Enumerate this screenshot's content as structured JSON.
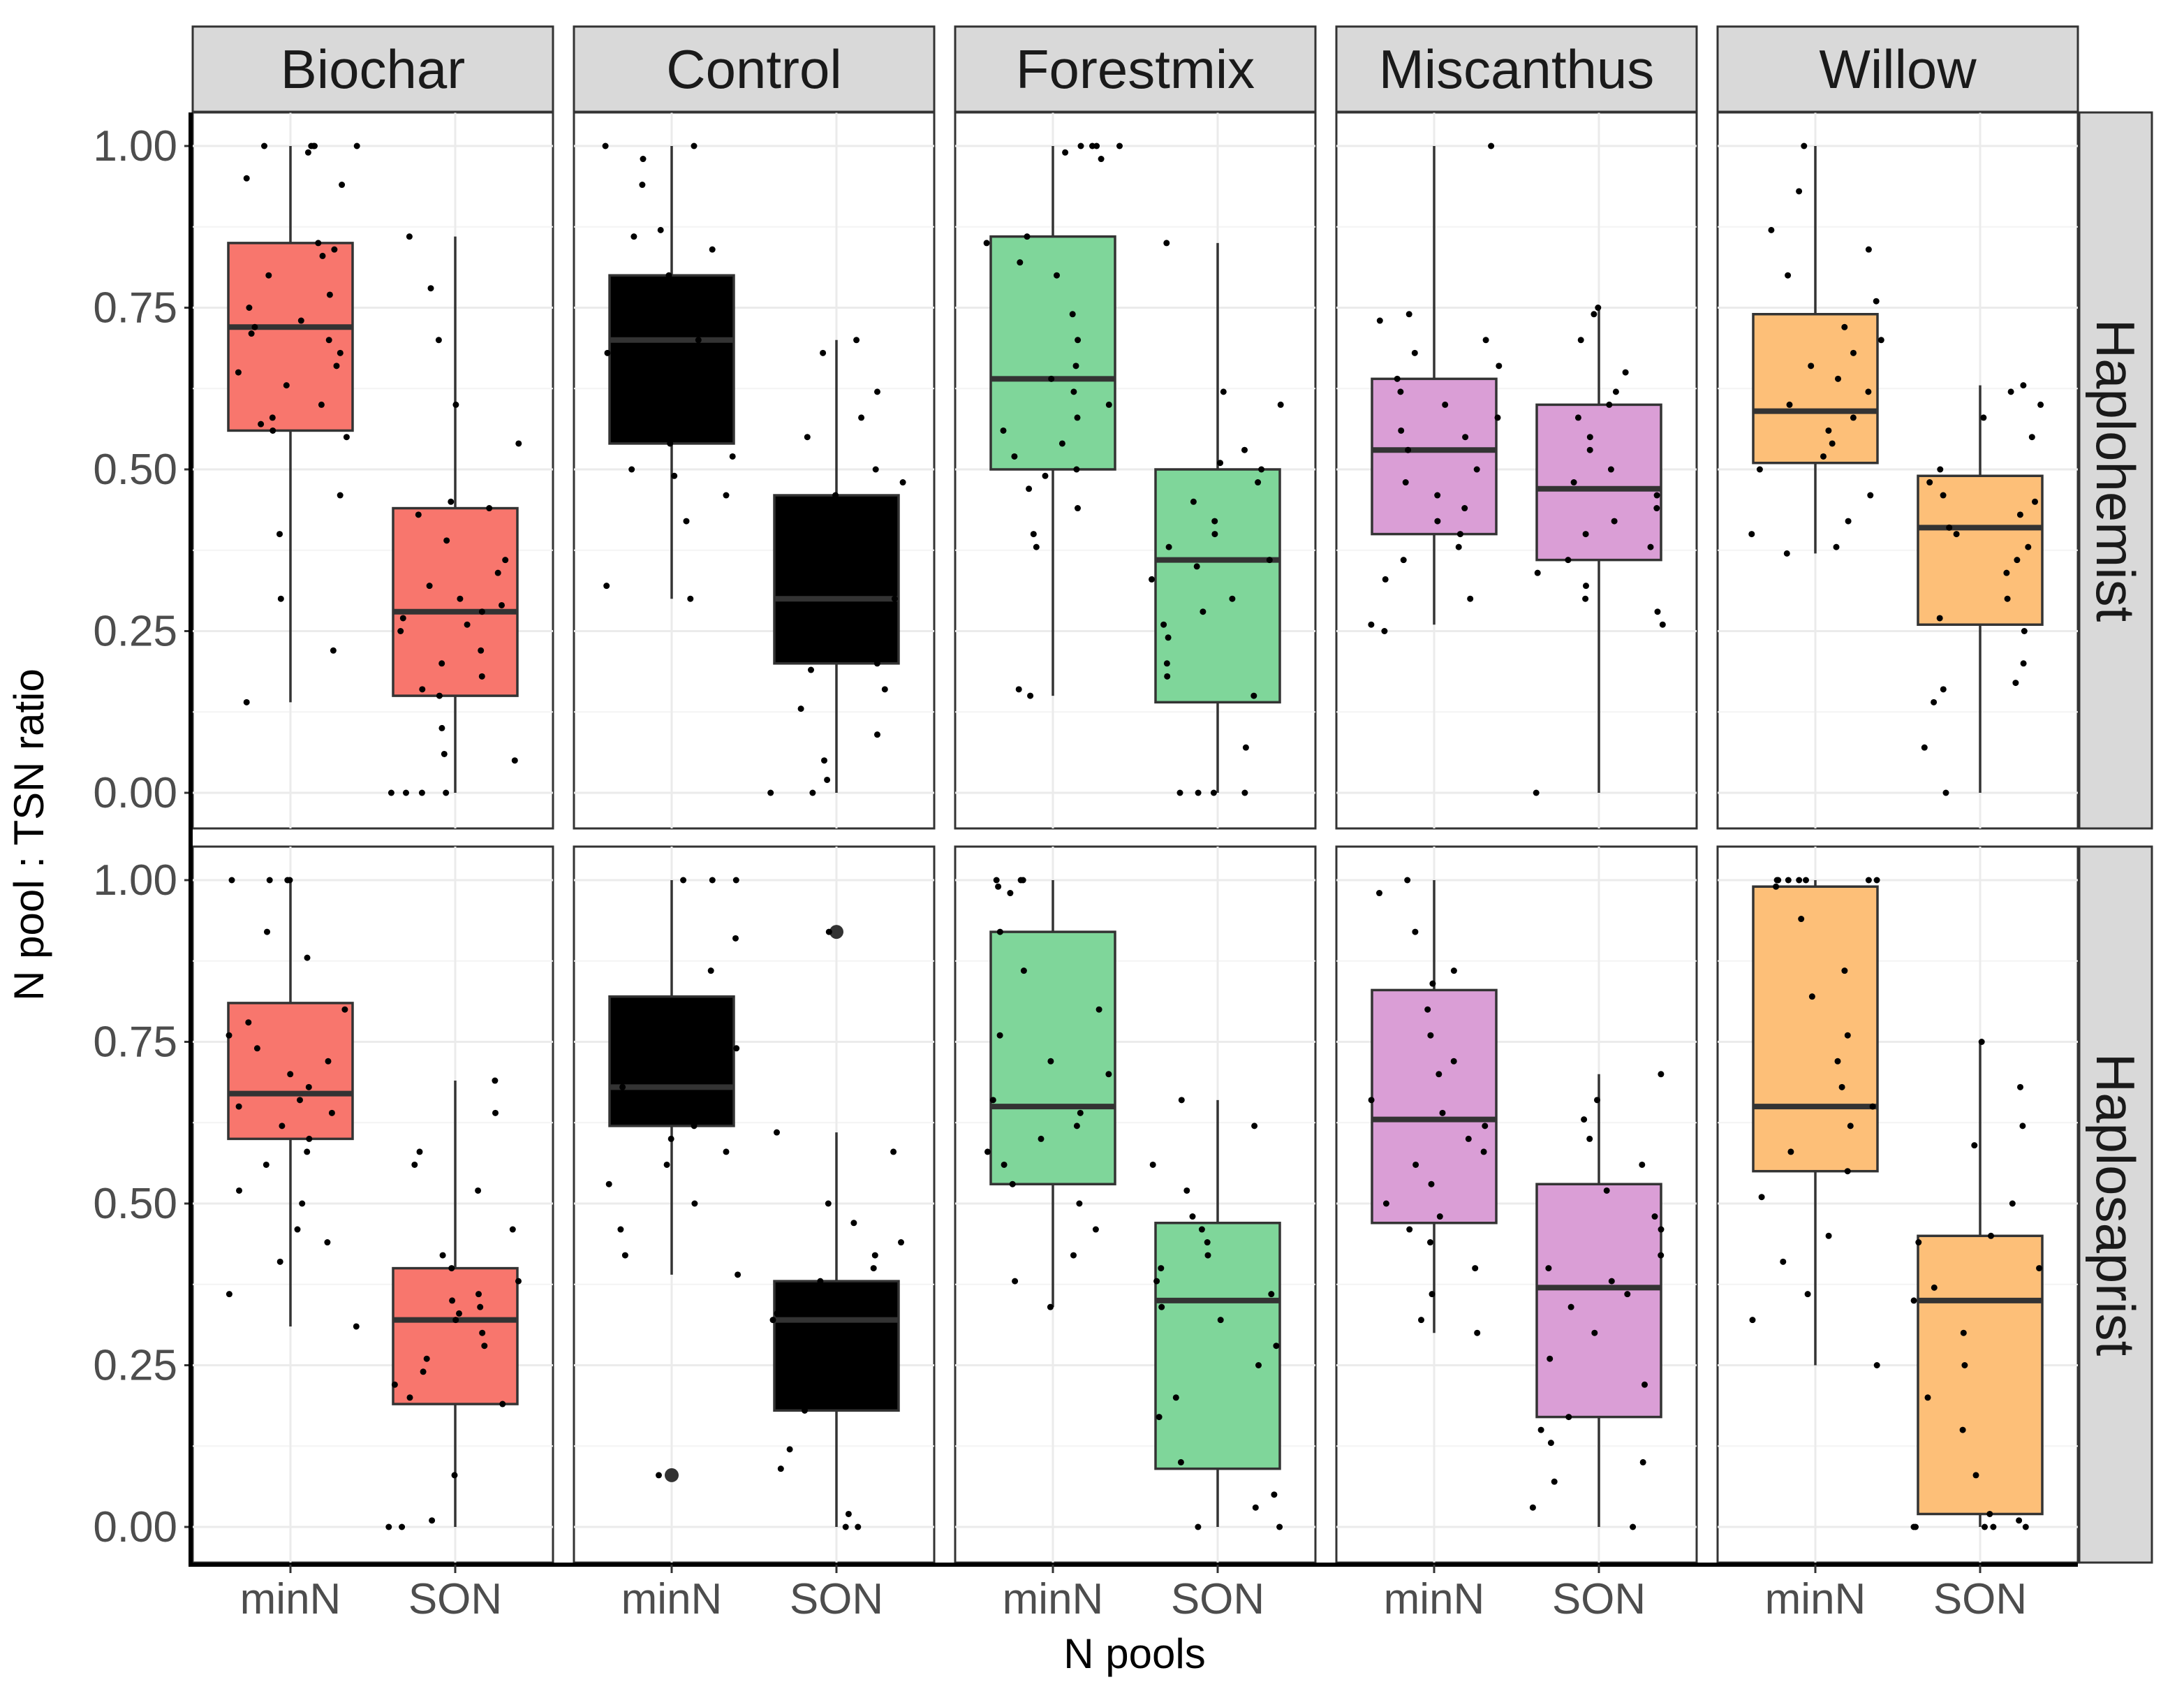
{
  "chart_data": {
    "type": "boxplot",
    "ylabel": "N pool : TSN ratio",
    "xlabel": "N pools",
    "categories": [
      "minN",
      "SON"
    ],
    "yticks": [
      "0.00",
      "0.25",
      "0.50",
      "0.75",
      "1.00"
    ],
    "ylim": [
      0,
      1
    ],
    "columns": [
      "Biochar",
      "Control",
      "Forestmix",
      "Miscanthus",
      "Willow"
    ],
    "rows": [
      "Haplohemist",
      "Haplosaprist"
    ],
    "colors": {
      "Biochar": "#f8766d",
      "Control": "#000000",
      "Forestmix": "#7fd69a",
      "Miscanthus": "#da9ed6",
      "Willow": "#fdbf78"
    },
    "panels": [
      {
        "row": "Haplohemist",
        "column": "Biochar",
        "boxes": [
          {
            "pool": "minN",
            "lower_whisker": 0.14,
            "q1": 0.56,
            "median": 0.72,
            "q3": 0.85,
            "upper_whisker": 1.0,
            "points": [
              1.0,
              1.0,
              0.99,
              1.0,
              1.0,
              1.0,
              0.95,
              0.94,
              0.85,
              0.84,
              0.83,
              0.8,
              0.77,
              0.75,
              0.73,
              0.72,
              0.71,
              0.7,
              0.68,
              0.66,
              0.65,
              0.63,
              0.6,
              0.58,
              0.57,
              0.56,
              0.55,
              0.46,
              0.4,
              0.3,
              0.22,
              0.14
            ]
          },
          {
            "pool": "SON",
            "lower_whisker": 0.0,
            "q1": 0.15,
            "median": 0.28,
            "q3": 0.44,
            "upper_whisker": 0.86,
            "points": [
              0.86,
              0.78,
              0.7,
              0.6,
              0.54,
              0.45,
              0.44,
              0.43,
              0.39,
              0.36,
              0.34,
              0.32,
              0.3,
              0.29,
              0.28,
              0.27,
              0.26,
              0.25,
              0.22,
              0.2,
              0.18,
              0.16,
              0.15,
              0.1,
              0.06,
              0.05,
              0.0,
              0.0,
              0.0,
              0.0
            ]
          }
        ]
      },
      {
        "row": "Haplohemist",
        "column": "Control",
        "boxes": [
          {
            "pool": "minN",
            "lower_whisker": 0.3,
            "q1": 0.54,
            "median": 0.7,
            "q3": 0.8,
            "upper_whisker": 1.0,
            "points": [
              1.0,
              1.0,
              0.98,
              0.94,
              0.87,
              0.86,
              0.84,
              0.8,
              0.78,
              0.74,
              0.72,
              0.7,
              0.68,
              0.66,
              0.64,
              0.6,
              0.58,
              0.55,
              0.54,
              0.52,
              0.5,
              0.49,
              0.46,
              0.42,
              0.32,
              0.3
            ]
          },
          {
            "pool": "SON",
            "lower_whisker": 0.0,
            "q1": 0.2,
            "median": 0.3,
            "q3": 0.46,
            "upper_whisker": 0.7,
            "points": [
              0.7,
              0.68,
              0.62,
              0.58,
              0.55,
              0.5,
              0.48,
              0.46,
              0.45,
              0.42,
              0.4,
              0.38,
              0.35,
              0.34,
              0.32,
              0.3,
              0.28,
              0.26,
              0.24,
              0.2,
              0.19,
              0.16,
              0.13,
              0.09,
              0.05,
              0.02,
              0.0,
              0.0
            ]
          }
        ]
      },
      {
        "row": "Haplohemist",
        "column": "Forestmix",
        "boxes": [
          {
            "pool": "minN",
            "lower_whisker": 0.15,
            "q1": 0.5,
            "median": 0.64,
            "q3": 0.86,
            "upper_whisker": 1.0,
            "points": [
              1.0,
              1.0,
              1.0,
              1.0,
              0.99,
              0.98,
              0.86,
              0.85,
              0.82,
              0.8,
              0.74,
              0.7,
              0.66,
              0.64,
              0.62,
              0.6,
              0.58,
              0.56,
              0.54,
              0.52,
              0.5,
              0.49,
              0.47,
              0.44,
              0.4,
              0.38,
              0.16,
              0.15
            ]
          },
          {
            "pool": "SON",
            "lower_whisker": 0.0,
            "q1": 0.14,
            "median": 0.36,
            "q3": 0.5,
            "upper_whisker": 0.85,
            "points": [
              0.85,
              0.62,
              0.6,
              0.53,
              0.51,
              0.5,
              0.48,
              0.45,
              0.42,
              0.4,
              0.38,
              0.36,
              0.35,
              0.33,
              0.3,
              0.28,
              0.26,
              0.24,
              0.2,
              0.18,
              0.15,
              0.07,
              0.0,
              0.0,
              0.0,
              0.0
            ]
          }
        ]
      },
      {
        "row": "Haplohemist",
        "column": "Miscanthus",
        "boxes": [
          {
            "pool": "minN",
            "lower_whisker": 0.26,
            "q1": 0.4,
            "median": 0.53,
            "q3": 0.64,
            "upper_whisker": 1.0,
            "points": [
              1.0,
              0.74,
              0.73,
              0.7,
              0.68,
              0.66,
              0.64,
              0.62,
              0.6,
              0.58,
              0.56,
              0.55,
              0.53,
              0.5,
              0.48,
              0.46,
              0.44,
              0.42,
              0.4,
              0.38,
              0.36,
              0.33,
              0.3,
              0.26,
              0.25
            ]
          },
          {
            "pool": "SON",
            "lower_whisker": 0.0,
            "q1": 0.36,
            "median": 0.47,
            "q3": 0.6,
            "upper_whisker": 0.75,
            "points": [
              0.75,
              0.74,
              0.7,
              0.65,
              0.62,
              0.6,
              0.58,
              0.55,
              0.53,
              0.5,
              0.48,
              0.46,
              0.44,
              0.42,
              0.4,
              0.38,
              0.36,
              0.34,
              0.32,
              0.3,
              0.28,
              0.26,
              0.0
            ]
          }
        ]
      },
      {
        "row": "Haplohemist",
        "column": "Willow",
        "boxes": [
          {
            "pool": "minN",
            "lower_whisker": 0.37,
            "q1": 0.51,
            "median": 0.59,
            "q3": 0.74,
            "upper_whisker": 1.0,
            "points": [
              1.0,
              0.93,
              0.87,
              0.84,
              0.8,
              0.76,
              0.72,
              0.7,
              0.68,
              0.66,
              0.64,
              0.62,
              0.6,
              0.58,
              0.56,
              0.54,
              0.52,
              0.5,
              0.46,
              0.42,
              0.4,
              0.38,
              0.37
            ]
          },
          {
            "pool": "SON",
            "lower_whisker": 0.0,
            "q1": 0.26,
            "median": 0.41,
            "q3": 0.49,
            "upper_whisker": 0.63,
            "points": [
              0.63,
              0.62,
              0.6,
              0.58,
              0.55,
              0.5,
              0.48,
              0.46,
              0.45,
              0.43,
              0.41,
              0.4,
              0.38,
              0.36,
              0.34,
              0.3,
              0.27,
              0.25,
              0.2,
              0.17,
              0.16,
              0.14,
              0.07,
              0.0
            ]
          }
        ]
      },
      {
        "row": "Haplosaprist",
        "column": "Biochar",
        "boxes": [
          {
            "pool": "minN",
            "lower_whisker": 0.31,
            "q1": 0.6,
            "median": 0.67,
            "q3": 0.81,
            "upper_whisker": 1.0,
            "points": [
              1.0,
              1.0,
              1.0,
              1.0,
              0.92,
              0.88,
              0.8,
              0.78,
              0.76,
              0.74,
              0.72,
              0.7,
              0.68,
              0.66,
              0.65,
              0.64,
              0.62,
              0.6,
              0.58,
              0.56,
              0.52,
              0.5,
              0.46,
              0.44,
              0.41,
              0.36,
              0.31
            ]
          },
          {
            "pool": "SON",
            "lower_whisker": 0.0,
            "q1": 0.19,
            "median": 0.32,
            "q3": 0.4,
            "upper_whisker": 0.69,
            "points": [
              0.69,
              0.64,
              0.58,
              0.56,
              0.52,
              0.46,
              0.42,
              0.4,
              0.38,
              0.36,
              0.35,
              0.34,
              0.33,
              0.32,
              0.3,
              0.28,
              0.26,
              0.24,
              0.22,
              0.2,
              0.19,
              0.08,
              0.01,
              0.0,
              0.0
            ]
          }
        ]
      },
      {
        "row": "Haplosaprist",
        "column": "Control",
        "boxes": [
          {
            "pool": "minN",
            "lower_whisker": 0.39,
            "q1": 0.62,
            "median": 0.68,
            "q3": 0.82,
            "upper_whisker": 1.0,
            "outliers": [
              0.08
            ],
            "points": [
              1.0,
              1.0,
              1.0,
              0.91,
              0.86,
              0.8,
              0.76,
              0.74,
              0.72,
              0.7,
              0.68,
              0.66,
              0.64,
              0.62,
              0.6,
              0.58,
              0.56,
              0.53,
              0.5,
              0.46,
              0.42,
              0.39,
              0.08
            ]
          },
          {
            "pool": "SON",
            "lower_whisker": 0.0,
            "q1": 0.18,
            "median": 0.32,
            "q3": 0.38,
            "upper_whisker": 0.61,
            "outliers": [
              0.92
            ],
            "points": [
              0.92,
              0.61,
              0.58,
              0.5,
              0.47,
              0.44,
              0.42,
              0.4,
              0.38,
              0.37,
              0.35,
              0.33,
              0.32,
              0.3,
              0.28,
              0.26,
              0.22,
              0.18,
              0.12,
              0.09,
              0.02,
              0.0,
              0.0
            ]
          }
        ]
      },
      {
        "row": "Haplosaprist",
        "column": "Forestmix",
        "boxes": [
          {
            "pool": "minN",
            "lower_whisker": 0.34,
            "q1": 0.53,
            "median": 0.65,
            "q3": 0.92,
            "upper_whisker": 1.0,
            "points": [
              1.0,
              1.0,
              1.0,
              0.99,
              0.98,
              0.92,
              0.86,
              0.8,
              0.76,
              0.72,
              0.7,
              0.66,
              0.64,
              0.62,
              0.6,
              0.58,
              0.56,
              0.53,
              0.5,
              0.46,
              0.42,
              0.38,
              0.34
            ]
          },
          {
            "pool": "SON",
            "lower_whisker": 0.0,
            "q1": 0.09,
            "median": 0.35,
            "q3": 0.47,
            "upper_whisker": 0.66,
            "points": [
              0.66,
              0.62,
              0.56,
              0.52,
              0.48,
              0.46,
              0.44,
              0.42,
              0.4,
              0.38,
              0.36,
              0.34,
              0.32,
              0.28,
              0.25,
              0.2,
              0.17,
              0.1,
              0.05,
              0.03,
              0.0,
              0.0
            ]
          }
        ]
      },
      {
        "row": "Haplosaprist",
        "column": "Miscanthus",
        "boxes": [
          {
            "pool": "minN",
            "lower_whisker": 0.3,
            "q1": 0.47,
            "median": 0.63,
            "q3": 0.83,
            "upper_whisker": 1.0,
            "points": [
              1.0,
              0.98,
              0.92,
              0.86,
              0.84,
              0.8,
              0.76,
              0.72,
              0.7,
              0.66,
              0.64,
              0.62,
              0.6,
              0.58,
              0.56,
              0.53,
              0.5,
              0.48,
              0.46,
              0.44,
              0.4,
              0.36,
              0.32,
              0.3
            ]
          },
          {
            "pool": "SON",
            "lower_whisker": 0.0,
            "q1": 0.17,
            "median": 0.37,
            "q3": 0.53,
            "upper_whisker": 0.7,
            "points": [
              0.7,
              0.66,
              0.63,
              0.6,
              0.56,
              0.52,
              0.48,
              0.46,
              0.42,
              0.4,
              0.38,
              0.36,
              0.34,
              0.3,
              0.26,
              0.22,
              0.17,
              0.15,
              0.13,
              0.1,
              0.07,
              0.03,
              0.0
            ]
          }
        ]
      },
      {
        "row": "Haplosaprist",
        "column": "Willow",
        "boxes": [
          {
            "pool": "minN",
            "lower_whisker": 0.25,
            "q1": 0.55,
            "median": 0.65,
            "q3": 0.99,
            "upper_whisker": 1.0,
            "points": [
              1.0,
              1.0,
              1.0,
              1.0,
              1.0,
              1.0,
              1.0,
              0.99,
              0.94,
              0.86,
              0.82,
              0.76,
              0.72,
              0.68,
              0.65,
              0.62,
              0.58,
              0.55,
              0.51,
              0.45,
              0.41,
              0.36,
              0.32,
              0.25
            ]
          },
          {
            "pool": "SON",
            "lower_whisker": 0.0,
            "q1": 0.02,
            "median": 0.35,
            "q3": 0.45,
            "upper_whisker": 0.75,
            "points": [
              0.75,
              0.68,
              0.62,
              0.59,
              0.5,
              0.45,
              0.44,
              0.4,
              0.37,
              0.35,
              0.3,
              0.25,
              0.2,
              0.15,
              0.08,
              0.02,
              0.01,
              0.0,
              0.0,
              0.0,
              0.0,
              0.0
            ]
          }
        ]
      }
    ]
  }
}
